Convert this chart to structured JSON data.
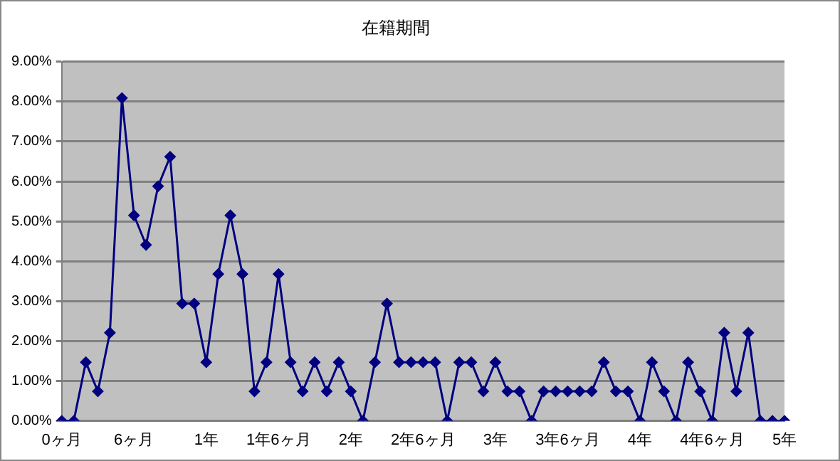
{
  "chart_data": {
    "type": "line",
    "title": "在籍期間",
    "categories": [
      "0ヶ月",
      null,
      null,
      null,
      null,
      null,
      "6ヶ月",
      null,
      null,
      null,
      null,
      null,
      "1年",
      null,
      null,
      null,
      null,
      null,
      "1年6ヶ月",
      null,
      null,
      null,
      null,
      null,
      "2年",
      null,
      null,
      null,
      null,
      null,
      "2年6ヶ月",
      null,
      null,
      null,
      null,
      null,
      "3年",
      null,
      null,
      null,
      null,
      null,
      "3年6ヶ月",
      null,
      null,
      null,
      null,
      null,
      "4年",
      null,
      null,
      null,
      null,
      null,
      "4年6ヶ月",
      null,
      null,
      null,
      null,
      null,
      "5年"
    ],
    "series": [
      {
        "color": "#000080",
        "values": [
          0,
          0,
          1.47,
          0.74,
          2.21,
          8.09,
          5.15,
          4.41,
          5.88,
          6.62,
          2.94,
          2.94,
          1.47,
          3.68,
          5.15,
          3.68,
          0.74,
          1.47,
          3.68,
          1.47,
          0.74,
          1.47,
          0.74,
          1.47,
          0.74,
          0,
          1.47,
          2.94,
          1.47,
          1.47,
          1.47,
          1.47,
          0,
          1.47,
          1.47,
          0.74,
          1.47,
          0.74,
          0.74,
          0,
          0.74,
          0.74,
          0.74,
          0.74,
          0.74,
          1.47,
          0.74,
          0.74,
          0,
          1.47,
          0.74,
          0,
          1.47,
          0.74,
          0,
          2.21,
          0.74,
          2.21,
          0,
          0,
          0
        ]
      }
    ],
    "ylim": [
      0,
      9
    ],
    "yticks": [
      {
        "value": 0,
        "label": "0.00%"
      },
      {
        "value": 1,
        "label": "1.00%"
      },
      {
        "value": 2,
        "label": "2.00%"
      },
      {
        "value": 3,
        "label": "3.00%"
      },
      {
        "value": 4,
        "label": "4.00%"
      },
      {
        "value": 5,
        "label": "5.00%"
      },
      {
        "value": 6,
        "label": "6.00%"
      },
      {
        "value": 7,
        "label": "7.00%"
      },
      {
        "value": 8,
        "label": "8.00%"
      },
      {
        "value": 9,
        "label": "9.00%"
      }
    ],
    "grid": "y",
    "legend": false,
    "marker": "diamond",
    "line_style": "solid"
  }
}
